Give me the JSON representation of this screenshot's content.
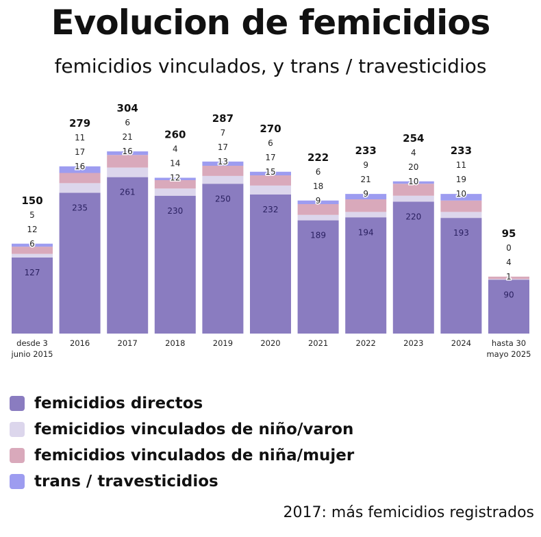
{
  "title": "Evolucion de femicidios",
  "subtitle": "femicidios vinculados, y trans / travesticidios",
  "footnote": "2017: más femicidios registrados",
  "chart_data": {
    "type": "bar",
    "stacked": true,
    "categories": [
      "desde 3\njunio 2015",
      "2016",
      "2017",
      "2018",
      "2019",
      "2020",
      "2021",
      "2022",
      "2023",
      "2024",
      "hasta 30\nmayo 2025"
    ],
    "totals": [
      150,
      279,
      304,
      260,
      287,
      270,
      222,
      233,
      254,
      233,
      95
    ],
    "series": [
      {
        "name": "femicidios directos",
        "color": "#8a7cc0",
        "values": [
          127,
          235,
          261,
          230,
          250,
          232,
          189,
          194,
          220,
          193,
          90
        ]
      },
      {
        "name": "femicidios vinculados de niño/varon",
        "color": "#dcd6ec",
        "values": [
          6,
          16,
          16,
          12,
          13,
          15,
          9,
          9,
          10,
          10,
          1
        ]
      },
      {
        "name": "femicidios vinculados de niña/mujer",
        "color": "#d9a9bb",
        "values": [
          12,
          17,
          21,
          14,
          17,
          17,
          18,
          21,
          20,
          19,
          4
        ]
      },
      {
        "name": "trans / travesticidios",
        "color": "#9d9cf0",
        "values": [
          5,
          11,
          6,
          4,
          7,
          6,
          6,
          9,
          4,
          11,
          0
        ]
      }
    ],
    "ylim": [
      0,
      304
    ],
    "grid": false,
    "legend": "bottom-left"
  }
}
